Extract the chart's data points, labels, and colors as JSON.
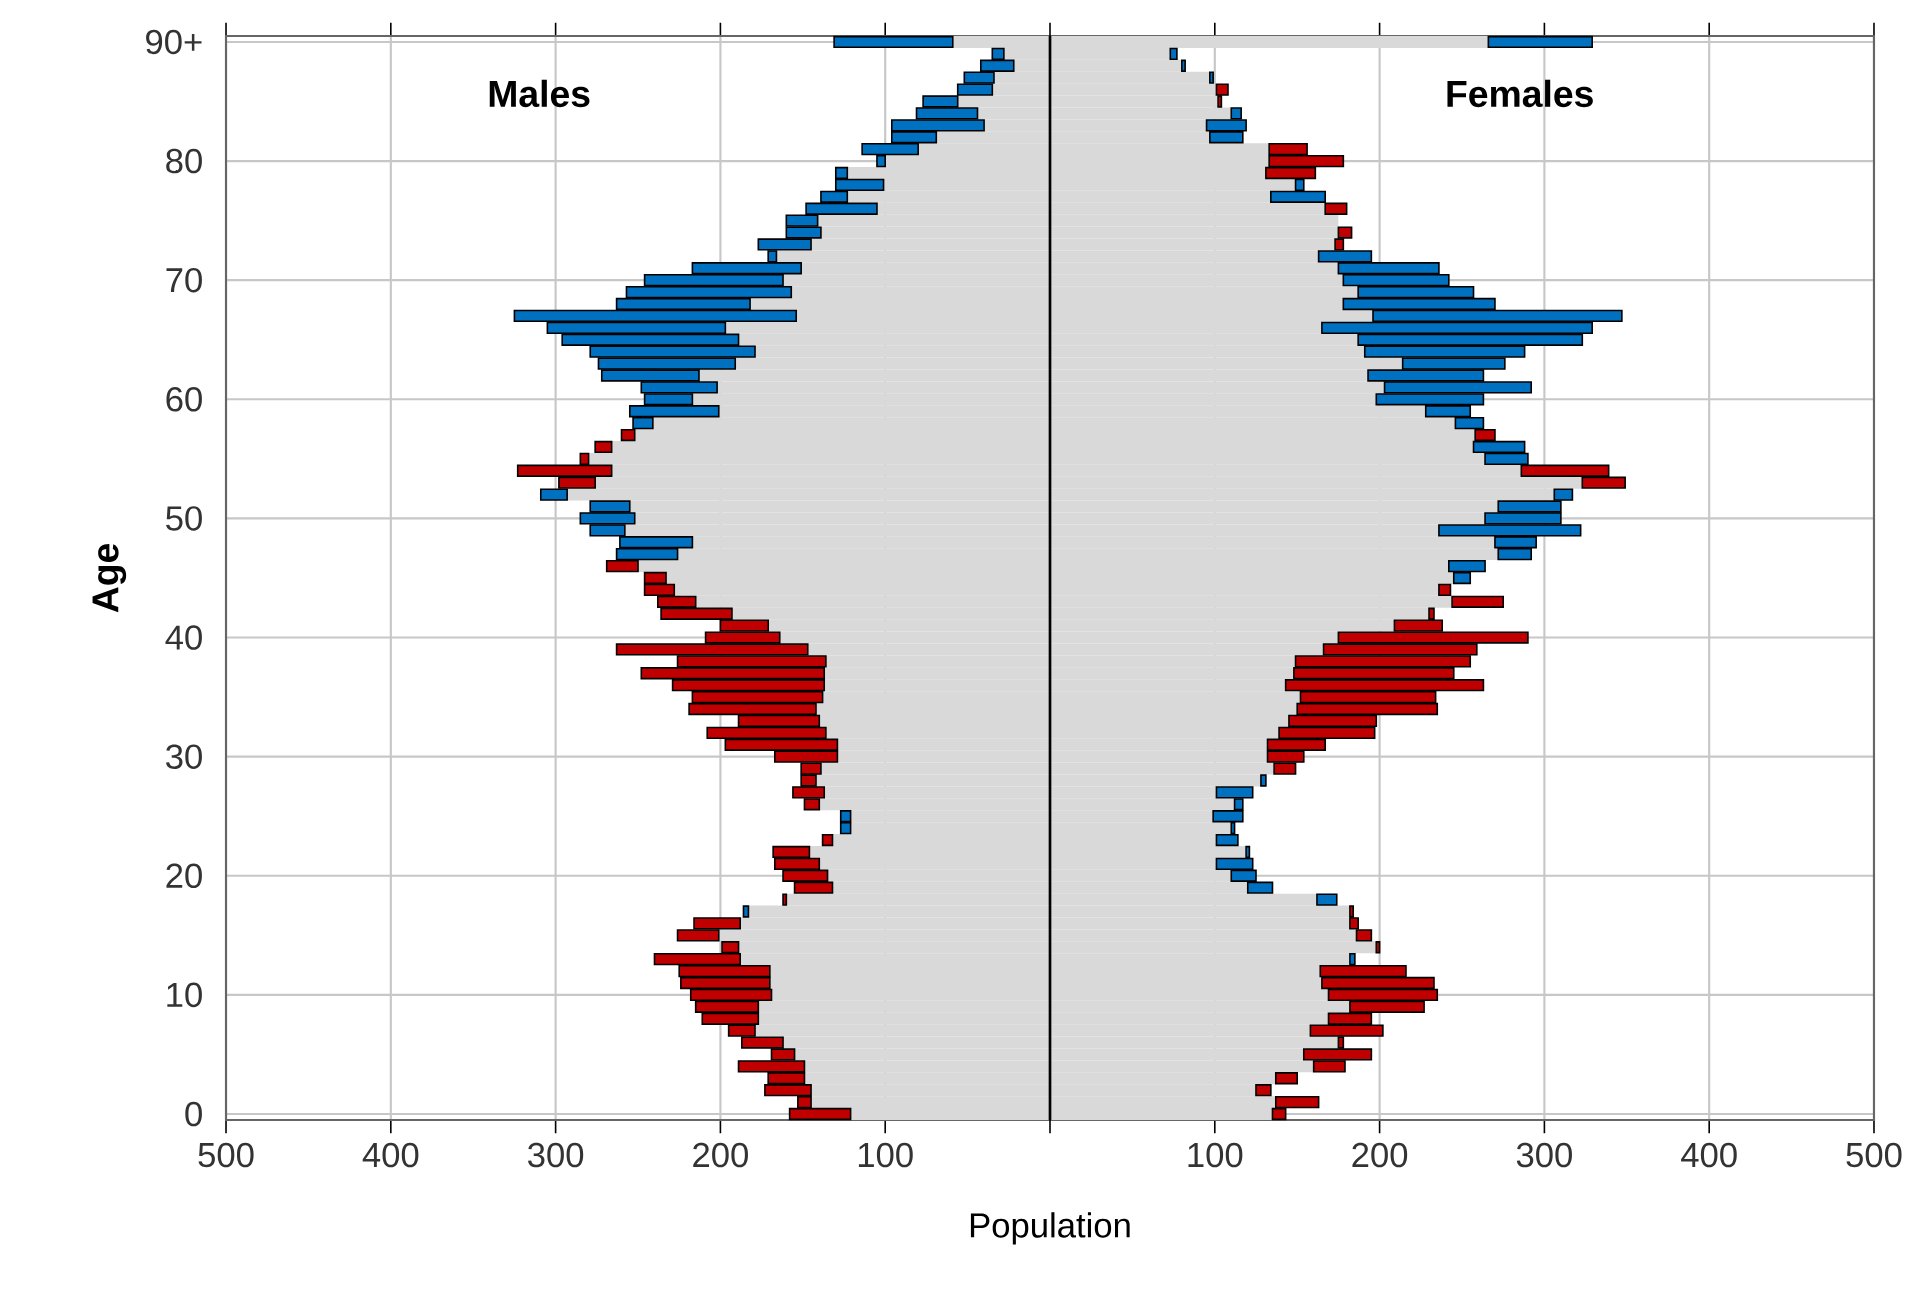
{
  "chart_data": {
    "type": "bar",
    "orientation": "horizontal",
    "stacked": true,
    "grid": true,
    "xlabel": "Population",
    "ylabel": "Age",
    "annotations": [
      "Males",
      "Females"
    ],
    "xlim": [
      -500,
      500
    ],
    "xticks": [
      {
        "value": -500,
        "label": "500"
      },
      {
        "value": -400,
        "label": "400"
      },
      {
        "value": -300,
        "label": "300"
      },
      {
        "value": -200,
        "label": "200"
      },
      {
        "value": -100,
        "label": "100"
      },
      {
        "value": 0,
        "label": null
      },
      {
        "value": 100,
        "label": "100"
      },
      {
        "value": 200,
        "label": "200"
      },
      {
        "value": 300,
        "label": "300"
      },
      {
        "value": 400,
        "label": "400"
      },
      {
        "value": 500,
        "label": "500"
      }
    ],
    "categories": [
      "90+",
      null,
      null,
      null,
      null,
      null,
      null,
      null,
      null,
      null,
      "80",
      null,
      null,
      null,
      null,
      null,
      null,
      null,
      null,
      null,
      "70",
      null,
      null,
      null,
      null,
      null,
      null,
      null,
      null,
      null,
      "60",
      null,
      null,
      null,
      null,
      null,
      null,
      null,
      null,
      null,
      "50",
      null,
      null,
      null,
      null,
      null,
      null,
      null,
      null,
      null,
      "40",
      null,
      null,
      null,
      null,
      null,
      null,
      null,
      null,
      null,
      "30",
      null,
      null,
      null,
      null,
      null,
      null,
      null,
      null,
      null,
      "20",
      null,
      null,
      null,
      null,
      null,
      null,
      null,
      null,
      null,
      "10",
      null,
      null,
      null,
      null,
      null,
      null,
      null,
      null,
      null,
      "0"
    ],
    "series": [
      {
        "color": "#d9d9d9",
        "values": [
          -59,
          -28,
          -22,
          -34,
          -35,
          -56,
          -44,
          -40,
          -69,
          -80,
          -100,
          -123,
          -101,
          -123,
          -105,
          -141,
          -139,
          -145,
          -166,
          -151,
          -162,
          -157,
          -182,
          -154,
          -197,
          -189,
          -179,
          -191,
          -213,
          -202,
          -217,
          -201,
          -241,
          -252,
          -266,
          -280,
          -266,
          -276,
          -293,
          -255,
          -252,
          -258,
          -217,
          -226,
          -250,
          -233,
          -228,
          -215,
          -193,
          -171,
          -164,
          -147,
          -136,
          -137,
          -137,
          -138,
          -142,
          -140,
          -136,
          -129,
          -129,
          -139,
          -142,
          -137,
          -140,
          -121,
          -121,
          -132,
          -146,
          -140,
          -135,
          -132,
          -160,
          -183,
          -188,
          -201,
          -189,
          -188,
          -170,
          -170,
          -169,
          -177,
          -177,
          -179,
          -162,
          -155,
          -149,
          -149,
          -145,
          -145,
          -121
        ]
      },
      {
        "color": "#c00000",
        "values": [
          null,
          null,
          null,
          null,
          null,
          null,
          null,
          null,
          null,
          null,
          null,
          null,
          null,
          null,
          null,
          null,
          null,
          null,
          null,
          null,
          null,
          null,
          null,
          null,
          null,
          null,
          null,
          null,
          null,
          null,
          null,
          null,
          null,
          -8,
          -10,
          -5,
          -57,
          -22,
          null,
          null,
          null,
          null,
          null,
          null,
          -19,
          -13,
          -18,
          -23,
          -43,
          -29,
          -45,
          -116,
          -90,
          -111,
          -92,
          -79,
          -77,
          -49,
          -72,
          -68,
          -38,
          -12,
          -9,
          -19,
          -9,
          null,
          null,
          -6,
          -22,
          -27,
          -27,
          -23,
          -2,
          null,
          -28,
          -25,
          -10,
          -52,
          -55,
          -54,
          -49,
          -38,
          -34,
          -16,
          -25,
          -14,
          -40,
          -22,
          -28,
          -8,
          -37
        ]
      },
      {
        "color": "#0070c0",
        "values": [
          -72,
          -7,
          -20,
          -18,
          -21,
          -21,
          -37,
          -56,
          -27,
          -34,
          -5,
          -7,
          -29,
          -16,
          -43,
          -19,
          -21,
          -32,
          -5,
          -66,
          -84,
          -100,
          -81,
          -171,
          -108,
          -107,
          -100,
          -83,
          -59,
          -46,
          -29,
          -54,
          -12,
          null,
          null,
          null,
          null,
          null,
          -16,
          -24,
          -33,
          -21,
          -44,
          -37,
          null,
          null,
          null,
          null,
          null,
          null,
          null,
          null,
          null,
          null,
          null,
          null,
          null,
          null,
          null,
          null,
          null,
          null,
          null,
          null,
          null,
          -6,
          -6,
          null,
          null,
          null,
          null,
          null,
          null,
          -3,
          null,
          null,
          null,
          null,
          null,
          null,
          null,
          null,
          null,
          null,
          null,
          null,
          null,
          null,
          null,
          null,
          null
        ]
      },
      {
        "color": "#d9d9d9",
        "values": [
          266,
          73,
          80,
          97,
          101,
          102,
          110,
          95,
          97,
          133,
          133,
          131,
          149,
          134,
          167,
          175,
          175,
          173,
          163,
          175,
          178,
          187,
          178,
          196,
          165,
          187,
          191,
          214,
          193,
          203,
          198,
          228,
          246,
          258,
          257,
          264,
          286,
          323,
          306,
          272,
          264,
          236,
          270,
          272,
          242,
          245,
          236,
          244,
          230,
          209,
          175,
          166,
          149,
          148,
          143,
          152,
          150,
          145,
          139,
          132,
          132,
          136,
          128,
          101,
          112,
          99,
          110,
          101,
          119,
          101,
          110,
          120,
          162,
          182,
          182,
          186,
          198,
          182,
          164,
          165,
          169,
          182,
          169,
          158,
          175,
          154,
          160,
          137,
          125,
          137,
          135
        ]
      },
      {
        "color": "#c00000",
        "values": [
          null,
          null,
          null,
          null,
          7,
          2,
          null,
          null,
          null,
          23,
          45,
          30,
          null,
          null,
          13,
          null,
          8,
          5,
          null,
          null,
          null,
          null,
          null,
          null,
          null,
          null,
          null,
          null,
          null,
          null,
          null,
          null,
          null,
          12,
          null,
          null,
          53,
          26,
          null,
          null,
          null,
          null,
          null,
          null,
          null,
          null,
          7,
          31,
          3,
          29,
          115,
          93,
          106,
          97,
          120,
          82,
          85,
          53,
          58,
          35,
          22,
          13,
          null,
          null,
          null,
          null,
          null,
          null,
          null,
          null,
          null,
          null,
          null,
          2,
          5,
          9,
          2,
          null,
          52,
          68,
          66,
          45,
          26,
          44,
          3,
          41,
          19,
          13,
          9,
          26,
          8
        ]
      },
      {
        "color": "#0070c0",
        "values": [
          63,
          4,
          2,
          2,
          null,
          null,
          6,
          24,
          20,
          null,
          null,
          null,
          5,
          33,
          null,
          null,
          null,
          null,
          32,
          61,
          64,
          70,
          92,
          151,
          164,
          136,
          97,
          62,
          70,
          89,
          65,
          27,
          17,
          null,
          31,
          26,
          null,
          null,
          11,
          38,
          46,
          86,
          25,
          20,
          22,
          10,
          null,
          null,
          null,
          null,
          null,
          null,
          null,
          null,
          null,
          null,
          null,
          null,
          null,
          null,
          null,
          null,
          3,
          22,
          5,
          18,
          2,
          13,
          2,
          22,
          15,
          15,
          12,
          null,
          null,
          null,
          null,
          3,
          null,
          null,
          null,
          null,
          null,
          null,
          null,
          null,
          null,
          null,
          null,
          null,
          null
        ]
      }
    ]
  }
}
